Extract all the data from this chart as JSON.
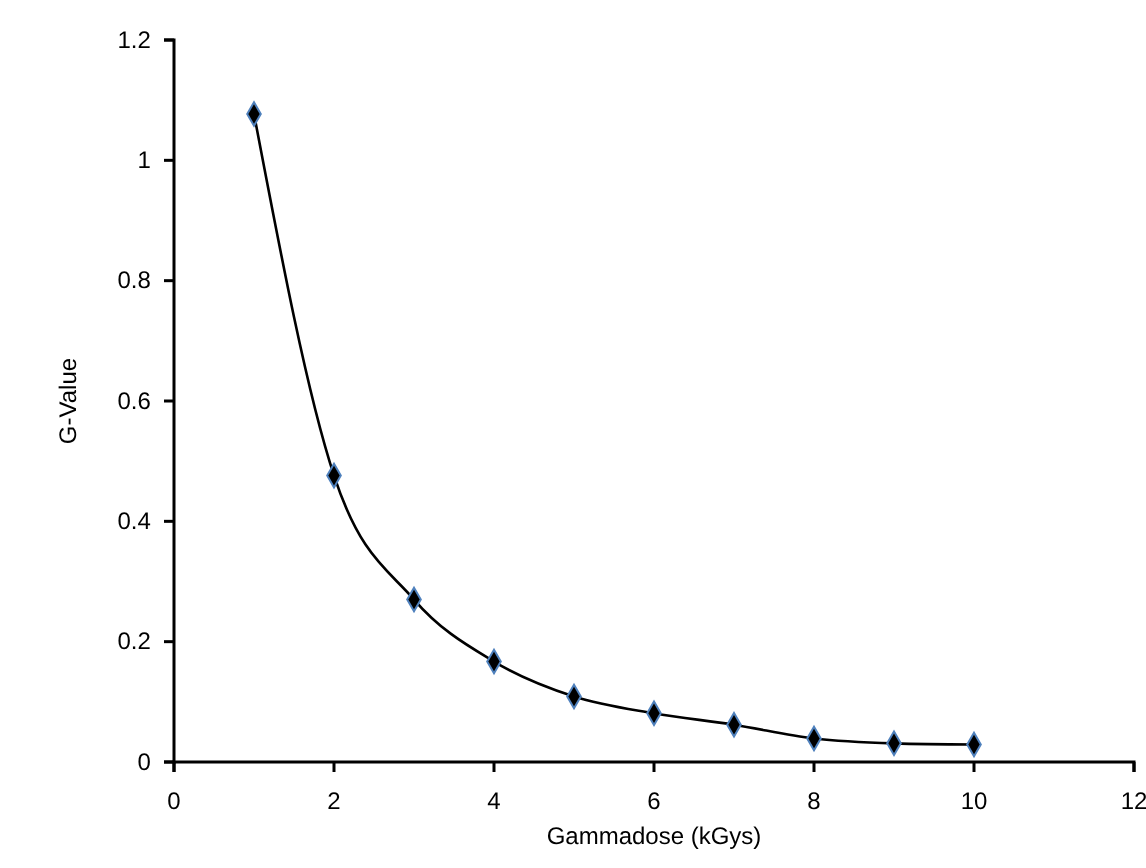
{
  "chart_data": {
    "type": "line",
    "xlabel": "Gammadose (kGys)",
    "ylabel": "G-Value",
    "x": [
      1,
      2,
      3,
      4,
      5,
      6,
      7,
      8,
      9,
      10
    ],
    "series": [
      {
        "color": "#000000",
        "values": [
          1.077,
          0.476,
          0.27,
          0.167,
          0.109,
          0.081,
          0.062,
          0.039,
          0.031,
          0.029
        ]
      }
    ],
    "xlim": [
      0,
      12
    ],
    "xticks": [
      0,
      2,
      4,
      6,
      8,
      10,
      12
    ],
    "ylim": [
      0,
      1.2
    ],
    "yticks": [
      0,
      0.2,
      0.4,
      0.6,
      0.8,
      1,
      1.2
    ],
    "marker": "diamond",
    "line_style": "solid"
  }
}
